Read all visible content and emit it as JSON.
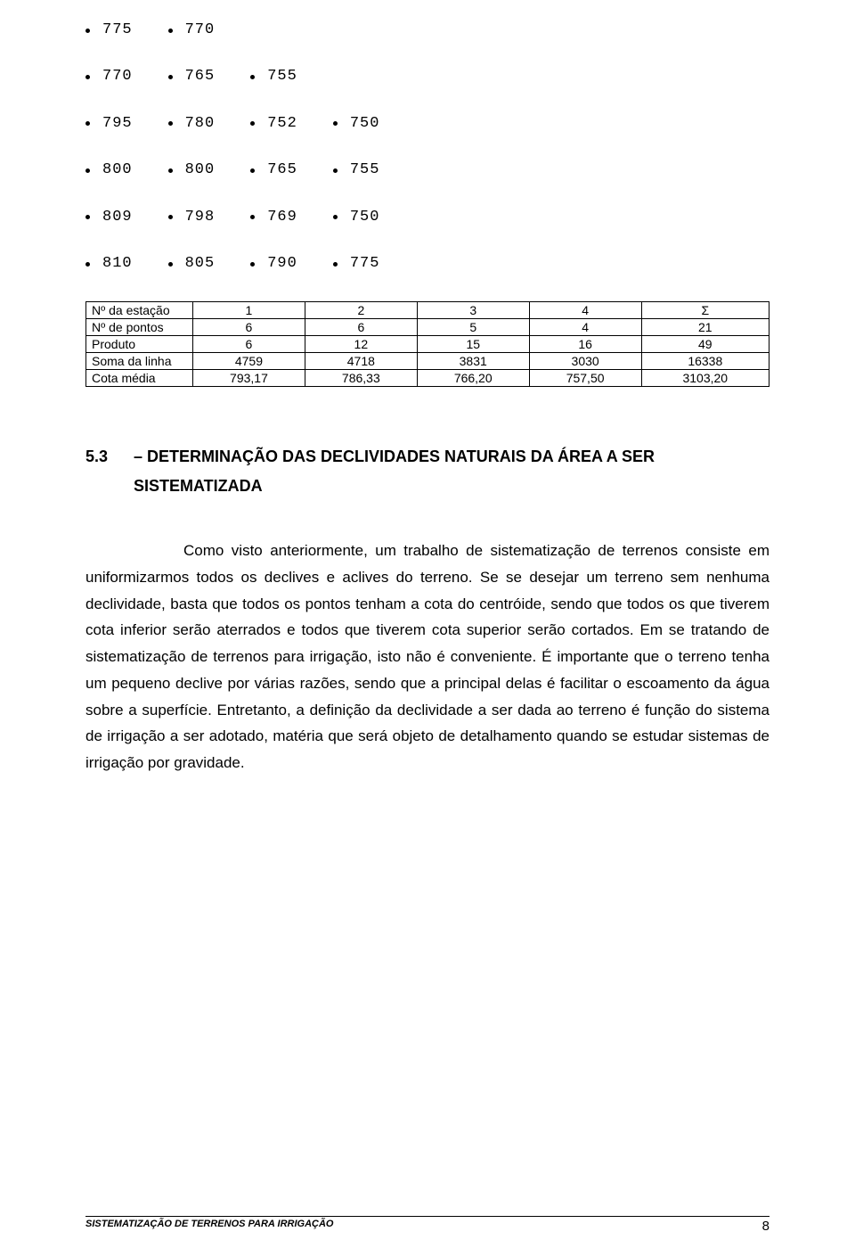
{
  "bullet_rows": [
    [
      "775",
      "770"
    ],
    [
      "770",
      "765",
      "755"
    ],
    [
      "795",
      "780",
      "752",
      "750"
    ],
    [
      "800",
      "800",
      "765",
      "755"
    ],
    [
      "809",
      "798",
      "769",
      "750"
    ],
    [
      "810",
      "805",
      "790",
      "775"
    ]
  ],
  "table": {
    "columns_label": [
      "Nº da estação",
      "1",
      "2",
      "3",
      "4",
      "Σ"
    ],
    "rows": [
      [
        "Nº de pontos",
        "6",
        "6",
        "5",
        "4",
        "21"
      ],
      [
        "Produto",
        "6",
        "12",
        "15",
        "16",
        "49"
      ],
      [
        "Soma da linha",
        "4759",
        "4718",
        "3831",
        "3030",
        "16338"
      ],
      [
        "Cota média",
        "793,17",
        "786,33",
        "766,20",
        "757,50",
        "3103,20"
      ]
    ]
  },
  "section": {
    "number": "5.3",
    "dash": "–",
    "title_line1": "DETERMINAÇÃO DAS DECLIVIDADES NATURAIS DA ÁREA A SER",
    "title_line2": "SISTEMATIZADA"
  },
  "body": "Como visto anteriormente, um trabalho de sistematização de terrenos consiste em uniformizarmos todos os declives e aclives do terreno. Se se desejar um terreno sem nenhuma declividade, basta que todos os pontos tenham a cota do centróide, sendo que todos os que tiverem cota inferior serão aterrados e todos que tiverem cota superior serão cortados. Em se tratando de sistematização de terrenos para irrigação, isto não é conveniente. É importante que o terreno tenha um pequeno declive por várias razões, sendo que a principal delas é facilitar o escoamento da água sobre a superfície. Entretanto, a definição da declividade a ser dada ao terreno é função do sistema de irrigação a ser adotado, matéria que será objeto de detalhamento quando se estudar sistemas de irrigação por gravidade.",
  "footer": {
    "title": "SISTEMATIZAÇÃO DE TERRENOS PARA IRRIGAÇÃO",
    "page": "8"
  }
}
